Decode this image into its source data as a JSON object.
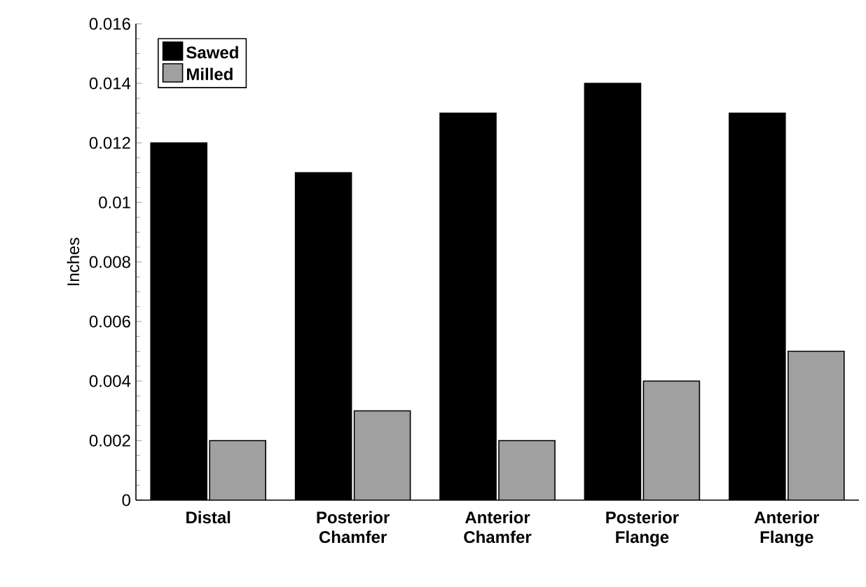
{
  "chart_data": {
    "type": "bar",
    "ylabel": "Inches",
    "categories": [
      "Distal",
      "Posterior Chamfer",
      "Anterior Chamfer",
      "Posterior Flange",
      "Anterior Flange"
    ],
    "series": [
      {
        "name": "Sawed",
        "color": "#000000",
        "values": [
          0.012,
          0.011,
          0.013,
          0.014,
          0.013
        ]
      },
      {
        "name": "Milled",
        "color": "#a0a0a0",
        "values": [
          0.002,
          0.003,
          0.002,
          0.004,
          0.005
        ]
      }
    ],
    "ylim": [
      0,
      0.016
    ],
    "yticks": [
      0,
      0.002,
      0.004,
      0.006,
      0.008,
      0.01,
      0.012,
      0.014,
      0.016
    ],
    "legend": "top left",
    "grid": false
  }
}
